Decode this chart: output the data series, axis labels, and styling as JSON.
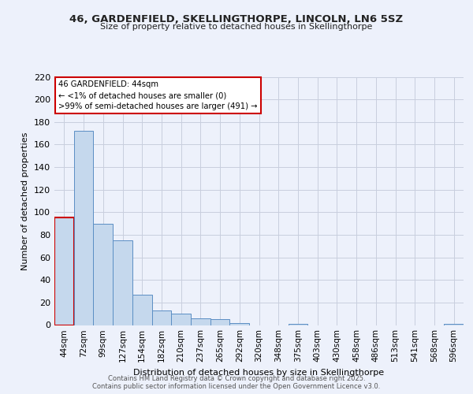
{
  "title": "46, GARDENFIELD, SKELLINGTHORPE, LINCOLN, LN6 5SZ",
  "subtitle": "Size of property relative to detached houses in Skellingthorpe",
  "xlabel": "Distribution of detached houses by size in Skellingthorpe",
  "ylabel": "Number of detached properties",
  "categories": [
    "44sqm",
    "72sqm",
    "99sqm",
    "127sqm",
    "154sqm",
    "182sqm",
    "210sqm",
    "237sqm",
    "265sqm",
    "292sqm",
    "320sqm",
    "348sqm",
    "375sqm",
    "403sqm",
    "430sqm",
    "458sqm",
    "486sqm",
    "513sqm",
    "541sqm",
    "568sqm",
    "596sqm"
  ],
  "values": [
    95,
    172,
    90,
    75,
    27,
    13,
    10,
    6,
    5,
    2,
    0,
    0,
    1,
    0,
    0,
    0,
    0,
    0,
    0,
    0,
    1
  ],
  "bar_color": "#c5d8ed",
  "bar_edge_color": "#5b8ec4",
  "highlight_bar_index": 0,
  "highlight_edge_color": "#cc0000",
  "annotation_title": "46 GARDENFIELD: 44sqm",
  "annotation_line1": "← <1% of detached houses are smaller (0)",
  "annotation_line2": ">99% of semi-detached houses are larger (491) →",
  "annotation_box_edge_color": "#cc0000",
  "ylim": [
    0,
    220
  ],
  "yticks": [
    0,
    20,
    40,
    60,
    80,
    100,
    120,
    140,
    160,
    180,
    200,
    220
  ],
  "bg_color": "#edf1fb",
  "grid_color": "#c8cede",
  "footer1": "Contains HM Land Registry data © Crown copyright and database right 2025.",
  "footer2": "Contains public sector information licensed under the Open Government Licence v3.0."
}
